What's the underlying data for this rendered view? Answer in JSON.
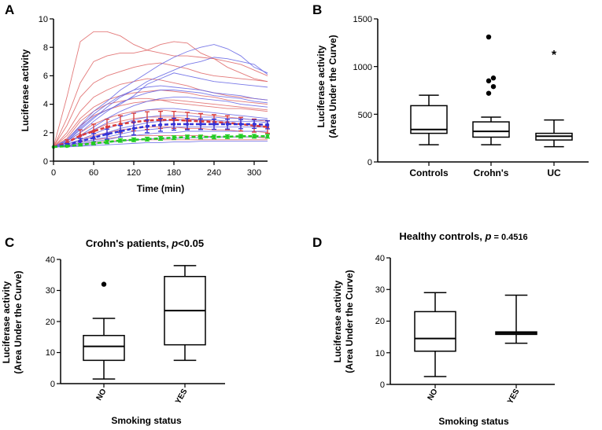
{
  "colors": {
    "ink": "#000000",
    "red": "#d93a3a",
    "blue": "#3434d8",
    "green": "#22cc22",
    "thin_red": "#e06a6a",
    "thin_blue": "#6a6ae6"
  },
  "chart_data": [
    {
      "panel": "A",
      "type": "line",
      "xlabel": "Time (min)",
      "ylabel": "Luciferase activity",
      "xlim": [
        0,
        320
      ],
      "ylim": [
        0,
        10
      ],
      "xticks": [
        0,
        60,
        120,
        180,
        240,
        300
      ],
      "yticks": [
        0,
        2,
        4,
        6,
        8,
        10
      ],
      "x": [
        0,
        20,
        40,
        60,
        80,
        100,
        120,
        140,
        160,
        180,
        200,
        220,
        240,
        260,
        280,
        300,
        320
      ],
      "mean_series": [
        {
          "name": "red mean",
          "color": "#d93a3a",
          "values": [
            1,
            1.3,
            1.8,
            2.1,
            2.4,
            2.6,
            2.75,
            2.85,
            2.9,
            2.9,
            2.85,
            2.8,
            2.75,
            2.7,
            2.6,
            2.5,
            2.4
          ],
          "error": [
            0,
            0.2,
            0.4,
            0.5,
            0.55,
            0.6,
            0.62,
            0.62,
            0.6,
            0.6,
            0.58,
            0.55,
            0.52,
            0.5,
            0.48,
            0.46,
            0.44
          ]
        },
        {
          "name": "blue mean",
          "color": "#3434d8",
          "values": [
            1,
            1.15,
            1.4,
            1.65,
            1.9,
            2.1,
            2.3,
            2.45,
            2.55,
            2.6,
            2.6,
            2.6,
            2.6,
            2.6,
            2.6,
            2.6,
            2.55
          ],
          "error": [
            0,
            0.1,
            0.2,
            0.3,
            0.35,
            0.4,
            0.45,
            0.45,
            0.45,
            0.42,
            0.4,
            0.38,
            0.36,
            0.34,
            0.32,
            0.3,
            0.28
          ]
        },
        {
          "name": "green mean",
          "color": "#22cc22",
          "values": [
            1,
            1.05,
            1.15,
            1.25,
            1.35,
            1.45,
            1.5,
            1.55,
            1.6,
            1.65,
            1.7,
            1.7,
            1.7,
            1.72,
            1.75,
            1.75,
            1.75
          ],
          "error": [
            0,
            0.05,
            0.08,
            0.1,
            0.12,
            0.12,
            0.13,
            0.13,
            0.13,
            0.13,
            0.13,
            0.13,
            0.13,
            0.13,
            0.13,
            0.13,
            0.13
          ]
        }
      ],
      "trace_series": [
        {
          "color": "#e06a6a",
          "values": [
            1,
            4.5,
            8.4,
            9.1,
            9.1,
            8.8,
            8.2,
            7.8,
            7.6,
            7.4,
            7.4,
            7.3,
            7.2,
            7.0,
            6.8,
            6.4,
            6.0
          ]
        },
        {
          "color": "#e06a6a",
          "values": [
            1,
            3.0,
            5.5,
            7.0,
            7.4,
            7.6,
            7.6,
            7.8,
            8.2,
            8.4,
            8.3,
            7.6,
            7.2,
            6.6,
            6.2,
            5.8,
            5.6
          ]
        },
        {
          "color": "#e06a6a",
          "values": [
            1,
            2.5,
            4.5,
            5.5,
            6.0,
            6.3,
            6.6,
            6.8,
            6.9,
            6.7,
            6.5,
            6.2,
            6.0,
            5.9,
            5.8,
            5.7,
            5.6
          ]
        },
        {
          "color": "#e06a6a",
          "values": [
            1,
            2.0,
            3.5,
            4.5,
            5.0,
            5.4,
            5.6,
            5.8,
            5.7,
            5.5,
            5.3,
            5.0,
            4.8,
            4.6,
            4.5,
            4.4,
            4.3
          ]
        },
        {
          "color": "#e06a6a",
          "values": [
            1,
            1.8,
            3.0,
            3.8,
            4.3,
            4.6,
            4.8,
            4.9,
            5.0,
            4.9,
            4.8,
            4.6,
            4.5,
            4.3,
            4.2,
            4.1,
            4.0
          ]
        },
        {
          "color": "#e06a6a",
          "values": [
            1,
            1.5,
            2.5,
            3.2,
            3.6,
            3.9,
            4.1,
            4.2,
            4.3,
            4.3,
            4.2,
            4.1,
            4.0,
            3.9,
            3.8,
            3.7,
            3.6
          ]
        },
        {
          "color": "#e06a6a",
          "values": [
            1,
            1.4,
            2.0,
            2.6,
            3.0,
            3.3,
            3.5,
            3.6,
            3.6,
            3.5,
            3.4,
            3.3,
            3.2,
            3.1,
            3.0,
            2.9,
            2.8
          ]
        },
        {
          "color": "#e06a6a",
          "values": [
            1,
            1.3,
            1.8,
            2.2,
            2.6,
            2.8,
            3.0,
            3.1,
            3.1,
            3.1,
            3.0,
            2.9,
            2.8,
            2.7,
            2.6,
            2.5,
            2.4
          ]
        },
        {
          "color": "#e06a6a",
          "values": [
            1,
            1.2,
            1.5,
            1.8,
            2.0,
            2.2,
            2.3,
            2.4,
            2.4,
            2.4,
            2.3,
            2.3,
            2.2,
            2.2,
            2.1,
            2.1,
            2.0
          ]
        },
        {
          "color": "#e06a6a",
          "values": [
            1,
            1.1,
            1.3,
            1.5,
            1.6,
            1.7,
            1.8,
            1.8,
            1.8,
            1.8,
            1.8,
            1.8,
            1.7,
            1.7,
            1.7,
            1.7,
            1.6
          ]
        },
        {
          "color": "#e06a6a",
          "values": [
            1,
            1.05,
            1.2,
            1.3,
            1.4,
            1.45,
            1.5,
            1.5,
            1.5,
            1.5,
            1.5,
            1.5,
            1.5,
            1.5,
            1.5,
            1.5,
            1.5
          ]
        },
        {
          "color": "#e06a6a",
          "values": [
            1,
            1.6,
            2.8,
            3.5,
            4.0,
            4.2,
            4.4,
            4.4,
            4.3,
            4.1,
            4.0,
            3.9,
            3.8,
            3.7,
            3.7,
            3.6,
            3.5
          ]
        },
        {
          "color": "#6a6ae6",
          "values": [
            1,
            1.5,
            2.5,
            3.5,
            4.2,
            5.0,
            5.6,
            6.2,
            6.8,
            7.3,
            7.7,
            8.0,
            8.2,
            7.9,
            7.4,
            6.6,
            6.2
          ]
        },
        {
          "color": "#6a6ae6",
          "values": [
            1,
            1.4,
            2.2,
            3.0,
            3.8,
            4.5,
            5.0,
            5.6,
            6.0,
            6.4,
            6.8,
            7.0,
            7.3,
            7.2,
            7.0,
            6.8,
            6.1
          ]
        },
        {
          "color": "#6a6ae6",
          "values": [
            1,
            1.5,
            2.4,
            3.3,
            4.0,
            4.6,
            5.0,
            5.2,
            5.3,
            5.2,
            5.1,
            5.0,
            4.8,
            4.7,
            4.6,
            4.4,
            4.3
          ]
        },
        {
          "color": "#6a6ae6",
          "values": [
            1,
            1.4,
            2.0,
            2.8,
            3.5,
            4.1,
            4.5,
            4.8,
            5.0,
            5.0,
            4.9,
            4.8,
            4.6,
            4.5,
            4.4,
            4.2,
            4.1
          ]
        },
        {
          "color": "#6a6ae6",
          "values": [
            1,
            1.3,
            1.8,
            2.4,
            3.0,
            3.5,
            3.9,
            4.2,
            4.4,
            4.5,
            4.5,
            4.4,
            4.3,
            4.2,
            4.0,
            3.9,
            3.8
          ]
        },
        {
          "color": "#6a6ae6",
          "values": [
            1,
            1.3,
            1.7,
            2.2,
            2.7,
            3.1,
            3.4,
            3.6,
            3.7,
            3.7,
            3.6,
            3.5,
            3.4,
            3.3,
            3.2,
            3.1,
            3.0
          ]
        },
        {
          "color": "#6a6ae6",
          "values": [
            1,
            1.2,
            1.5,
            1.9,
            2.3,
            2.6,
            2.9,
            3.1,
            3.2,
            3.2,
            3.2,
            3.1,
            3.1,
            3.0,
            3.0,
            2.9,
            2.9
          ]
        },
        {
          "color": "#6a6ae6",
          "values": [
            1,
            1.2,
            1.4,
            1.7,
            2.0,
            2.3,
            2.5,
            2.7,
            2.8,
            2.9,
            2.9,
            2.9,
            2.9,
            2.8,
            2.8,
            2.8,
            2.7
          ]
        },
        {
          "color": "#6a6ae6",
          "values": [
            1,
            1.1,
            1.3,
            1.5,
            1.7,
            1.9,
            2.1,
            2.2,
            2.3,
            2.4,
            2.4,
            2.4,
            2.4,
            2.4,
            2.4,
            2.4,
            2.4
          ]
        },
        {
          "color": "#6a6ae6",
          "values": [
            1,
            1.1,
            1.2,
            1.4,
            1.5,
            1.7,
            1.8,
            1.9,
            2.0,
            2.0,
            2.1,
            2.1,
            2.1,
            2.1,
            2.1,
            2.1,
            2.1
          ]
        },
        {
          "color": "#6a6ae6",
          "values": [
            1,
            1.05,
            1.1,
            1.2,
            1.3,
            1.4,
            1.5,
            1.55,
            1.6,
            1.6,
            1.65,
            1.65,
            1.7,
            1.7,
            1.7,
            1.7,
            1.7
          ]
        },
        {
          "color": "#6a6ae6",
          "values": [
            1,
            1.0,
            1.05,
            1.1,
            1.15,
            1.2,
            1.25,
            1.3,
            1.3,
            1.35,
            1.35,
            1.4,
            1.4,
            1.4,
            1.4,
            1.4,
            1.4
          ]
        },
        {
          "color": "#6a6ae6",
          "values": [
            1,
            1.4,
            2.3,
            3.1,
            3.6,
            4.0,
            4.6,
            5.4,
            5.8,
            6.2,
            6.0,
            5.8,
            5.6,
            5.5,
            5.4,
            5.3,
            5.2
          ]
        }
      ]
    },
    {
      "panel": "B",
      "type": "box",
      "ylabel": [
        "Luciferase activity",
        "(Area Under the Curve)"
      ],
      "ylim": [
        0,
        1500
      ],
      "yticks": [
        0,
        500,
        1000,
        1500
      ],
      "categories": [
        "Controls",
        "Crohn's",
        "UC"
      ],
      "boxes": [
        {
          "min": 180,
          "q1": 300,
          "median": 340,
          "q3": 590,
          "max": 700,
          "outliers": []
        },
        {
          "min": 180,
          "q1": 260,
          "median": 320,
          "q3": 420,
          "max": 470,
          "outliers": [
            1310,
            880,
            850,
            790,
            720
          ]
        },
        {
          "min": 160,
          "q1": 230,
          "median": 270,
          "q3": 300,
          "max": 440,
          "outliers": [],
          "star_outliers": [
            1130
          ]
        }
      ]
    },
    {
      "panel": "C",
      "type": "box",
      "title": "Crohn's patients, ",
      "title_stat_label": "p",
      "title_stat_value": "<0.05",
      "ylabel": [
        "Luciferase activity",
        "(Area Under the Curve)"
      ],
      "xlabel": "Smoking status",
      "ylim": [
        0,
        40
      ],
      "yticks": [
        0,
        10,
        20,
        30,
        40
      ],
      "categories": [
        "NO",
        "YES"
      ],
      "boxes": [
        {
          "min": 1.5,
          "q1": 7.5,
          "median": 12,
          "q3": 15.5,
          "max": 21,
          "outliers": [
            32
          ]
        },
        {
          "min": 7.5,
          "q1": 12.5,
          "median": 23.5,
          "q3": 34.5,
          "max": 38,
          "outliers": []
        }
      ]
    },
    {
      "panel": "D",
      "type": "box",
      "title": "Healthy controls, ",
      "title_stat_label": "p",
      "title_stat_value": " = 0.4516",
      "ylabel": [
        "Luciferase activity",
        "(Area Under the Curve)"
      ],
      "xlabel": "Smoking status",
      "ylim": [
        0,
        40
      ],
      "yticks": [
        0,
        10,
        20,
        30,
        40
      ],
      "categories": [
        "NO",
        "YES"
      ],
      "boxes": [
        {
          "min": 2.5,
          "q1": 10.5,
          "median": 14.5,
          "q3": 23,
          "max": 29,
          "outliers": []
        },
        {
          "min": 13,
          "q1": 15.8,
          "median": 16.2,
          "q3": 16.6,
          "max": 28.2,
          "outliers": []
        }
      ]
    }
  ]
}
